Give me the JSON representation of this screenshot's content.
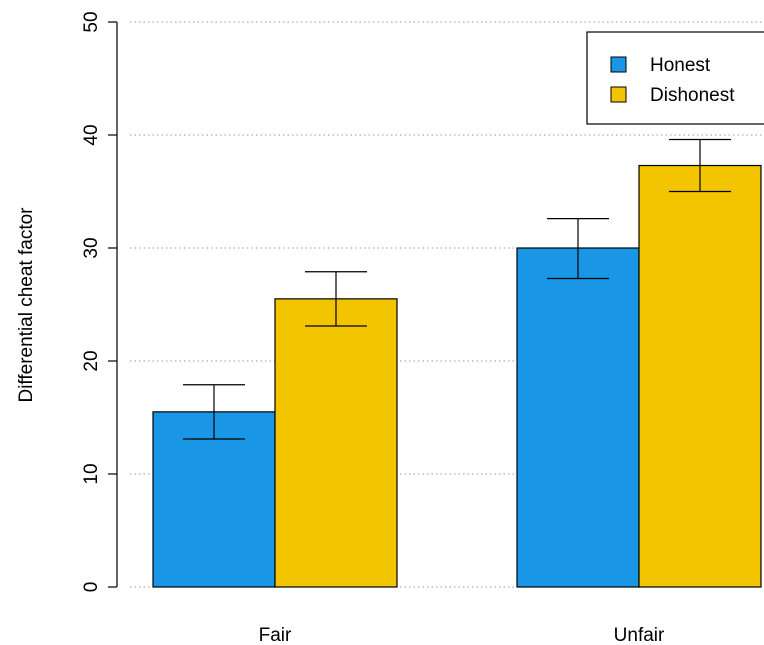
{
  "chart_data": {
    "type": "bar",
    "title": "",
    "xlabel": "",
    "ylabel": "Differential cheat factor",
    "categories": [
      "Fair",
      "Unfair"
    ],
    "series": [
      {
        "name": "Honest",
        "color": "#1a96e6",
        "values": [
          15.5,
          30.0
        ],
        "error_low": [
          13.1,
          27.3
        ],
        "error_high": [
          17.9,
          32.6
        ]
      },
      {
        "name": "Dishonest",
        "color": "#f2c500",
        "values": [
          25.5,
          37.3
        ],
        "error_low": [
          23.1,
          35.0
        ],
        "error_high": [
          27.9,
          39.6
        ]
      }
    ],
    "ylim": [
      0,
      50
    ],
    "yticks": [
      "0",
      "10",
      "20",
      "30",
      "40",
      "50"
    ],
    "grid": true,
    "legend_position": "top-right"
  }
}
